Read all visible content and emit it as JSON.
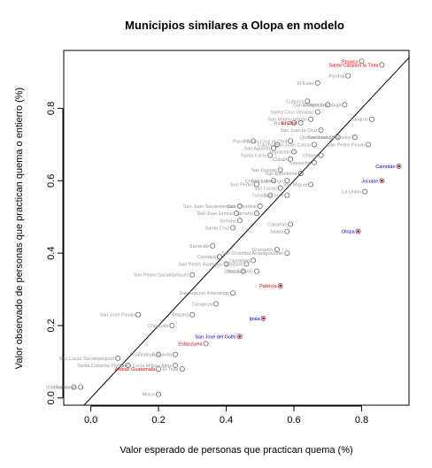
{
  "chart_data": {
    "type": "scatter",
    "title": "Municipios similares a Olopa en modelo",
    "xlabel": "Valor esperado de personas que practican quema (%)",
    "ylabel": "Valor observado de personas que practican quema o entierro (%)",
    "xlim": [
      -0.08,
      0.94
    ],
    "ylim": [
      -0.02,
      0.96
    ],
    "x_ticks": [
      0.0,
      0.2,
      0.4,
      0.6,
      0.8
    ],
    "x_tick_labels": [
      "0.0",
      "0.2",
      "0.4",
      "0.6",
      "0.8"
    ],
    "y_ticks": [
      0.0,
      0.2,
      0.4,
      0.6,
      0.8
    ],
    "y_tick_labels": [
      "0.0",
      "0.2",
      "0.4",
      "0.6",
      "0.8"
    ],
    "reference_line": {
      "slope": 1,
      "intercept": 0
    },
    "colors": {
      "red": "#dd0000",
      "blue": "#0000cc",
      "gray": "#9a9a9a",
      "point": "#555555"
    },
    "highlighted_points": [
      {
        "label": "Pasaco",
        "x": 0.8,
        "y": 0.93,
        "color": "red",
        "marked": false
      },
      {
        "label": "Santa Catarina la Tinta",
        "x": 0.86,
        "y": 0.92,
        "color": "red",
        "marked": false
      },
      {
        "label": "El Chol",
        "x": 0.62,
        "y": 0.76,
        "color": "red",
        "marked": false
      },
      {
        "label": "Camotán",
        "x": 0.91,
        "y": 0.64,
        "color": "blue",
        "marked": true
      },
      {
        "label": "Jocotán",
        "x": 0.86,
        "y": 0.6,
        "color": "blue",
        "marked": true
      },
      {
        "label": "Olopa",
        "x": 0.79,
        "y": 0.46,
        "color": "blue",
        "marked": true
      },
      {
        "label": "Patzicía",
        "x": 0.56,
        "y": 0.31,
        "color": "red",
        "marked": true
      },
      {
        "label": "Ipala",
        "x": 0.51,
        "y": 0.22,
        "color": "blue",
        "marked": true
      },
      {
        "label": "San José del Golfo",
        "x": 0.44,
        "y": 0.17,
        "color": "blue",
        "marked": true
      },
      {
        "label": "Estanzuela",
        "x": 0.34,
        "y": 0.15,
        "color": "red",
        "marked": false
      },
      {
        "label": "Aldeas Guatemala",
        "x": 0.2,
        "y": 0.08,
        "color": "red",
        "marked": false
      }
    ],
    "gray_points": [
      {
        "label": "Joyabaj",
        "x": 0.76,
        "y": 0.89
      },
      {
        "label": "El Estor",
        "x": 0.67,
        "y": 0.87
      },
      {
        "label": "Cubulco",
        "x": 0.64,
        "y": 0.82
      },
      {
        "label": "Livingston",
        "x": 0.7,
        "y": 0.81
      },
      {
        "label": "San Andrés Sajcabajá",
        "x": 0.75,
        "y": 0.81
      },
      {
        "label": "Santa Cruz Verapaz",
        "x": 0.67,
        "y": 0.79
      },
      {
        "label": "San Mateo Ixtatán",
        "x": 0.65,
        "y": 0.77
      },
      {
        "label": "Rabinal",
        "x": 0.6,
        "y": 0.76
      },
      {
        "label": "Lanquín",
        "x": 0.83,
        "y": 0.77
      },
      {
        "label": "San Juan la Cruz",
        "x": 0.68,
        "y": 0.74
      },
      {
        "label": "Quetzaltenango",
        "x": 0.73,
        "y": 0.72
      },
      {
        "label": "San Juan Chamelco",
        "x": 0.78,
        "y": 0.72
      },
      {
        "label": "Purulhá",
        "x": 0.48,
        "y": 0.71
      },
      {
        "label": "Carchá",
        "x": 0.55,
        "y": 0.7
      },
      {
        "label": "Santa Cruz el Chol",
        "x": 0.59,
        "y": 0.71
      },
      {
        "label": "San Juan Cotzal",
        "x": 0.66,
        "y": 0.7
      },
      {
        "label": "San Pedro Pinula",
        "x": 0.82,
        "y": 0.7
      },
      {
        "label": "San Agustín",
        "x": 0.54,
        "y": 0.69
      },
      {
        "label": "Uspantán",
        "x": 0.6,
        "y": 0.68
      },
      {
        "label": "Chisec",
        "x": 0.68,
        "y": 0.67
      },
      {
        "label": "Santa Lucía",
        "x": 0.53,
        "y": 0.67
      },
      {
        "label": "Cobán",
        "x": 0.59,
        "y": 0.66
      },
      {
        "label": "Sayaxché",
        "x": 0.66,
        "y": 0.65
      },
      {
        "label": "San Gaspar",
        "x": 0.56,
        "y": 0.63
      },
      {
        "label": "San Bartolomé",
        "x": 0.62,
        "y": 0.62
      },
      {
        "label": "San Luis",
        "x": 0.54,
        "y": 0.6
      },
      {
        "label": "Chichicastenango",
        "x": 0.58,
        "y": 0.6
      },
      {
        "label": "San Pedro",
        "x": 0.49,
        "y": 0.59
      },
      {
        "label": "San Miguel",
        "x": 0.65,
        "y": 0.59
      },
      {
        "label": "San Lucas",
        "x": 0.56,
        "y": 0.58
      },
      {
        "label": "La Unión",
        "x": 0.81,
        "y": 0.57
      },
      {
        "label": "San José",
        "x": 0.58,
        "y": 0.56
      },
      {
        "label": "Tucurú",
        "x": 0.53,
        "y": 0.56
      },
      {
        "label": "San Juan Sacatepéquez",
        "x": 0.44,
        "y": 0.53
      },
      {
        "label": "San Cristóbal",
        "x": 0.5,
        "y": 0.53
      },
      {
        "label": "San Juan Ermita",
        "x": 0.43,
        "y": 0.51
      },
      {
        "label": "Tamahú",
        "x": 0.49,
        "y": 0.51
      },
      {
        "label": "Senahú",
        "x": 0.44,
        "y": 0.49
      },
      {
        "label": "Cabañas",
        "x": 0.59,
        "y": 0.48
      },
      {
        "label": "Santa Cruz",
        "x": 0.42,
        "y": 0.47
      },
      {
        "label": "Jalapa",
        "x": 0.58,
        "y": 0.46
      },
      {
        "label": "Sanarate",
        "x": 0.36,
        "y": 0.42
      },
      {
        "label": "Granados",
        "x": 0.55,
        "y": 0.41
      },
      {
        "label": "San Cristóbal Acasaguastlán",
        "x": 0.58,
        "y": 0.4
      },
      {
        "label": "Comapa",
        "x": 0.38,
        "y": 0.39
      },
      {
        "label": "Zapotitlán",
        "x": 0.48,
        "y": 0.38
      },
      {
        "label": "San Pedro Ayampuc",
        "x": 0.4,
        "y": 0.37
      },
      {
        "label": "Sansare",
        "x": 0.46,
        "y": 0.37
      },
      {
        "label": "Jutiapa",
        "x": 0.45,
        "y": 0.35
      },
      {
        "label": "San Pedro Sacatepéquez",
        "x": 0.3,
        "y": 0.34
      },
      {
        "label": "San Antonio",
        "x": 0.49,
        "y": 0.35
      },
      {
        "label": "San Antonio Ilotenango",
        "x": 0.42,
        "y": 0.29
      },
      {
        "label": "Zaragoza",
        "x": 0.37,
        "y": 0.26
      },
      {
        "label": "San José Pinula",
        "x": 0.14,
        "y": 0.23
      },
      {
        "label": "Amparo",
        "x": 0.3,
        "y": 0.23
      },
      {
        "label": "Chinautla",
        "x": 0.24,
        "y": 0.2
      },
      {
        "label": "Escuintla",
        "x": 0.25,
        "y": 0.12
      },
      {
        "label": "Guastatoya",
        "x": 0.2,
        "y": 0.12
      },
      {
        "label": "Santa Lucía Milpas Altas",
        "x": 0.25,
        "y": 0.09
      },
      {
        "label": "San Lucas Sacatepéquez",
        "x": 0.08,
        "y": 0.11
      },
      {
        "label": "Santa Catarina Pinula",
        "x": 0.11,
        "y": 0.09
      },
      {
        "label": "El Tejar",
        "x": 0.27,
        "y": 0.08
      },
      {
        "label": "Mixco",
        "x": 0.2,
        "y": 0.01
      },
      {
        "label": "Guatemala",
        "x": -0.03,
        "y": 0.03
      },
      {
        "label": "Villa Nueva",
        "x": -0.05,
        "y": 0.03
      }
    ]
  }
}
